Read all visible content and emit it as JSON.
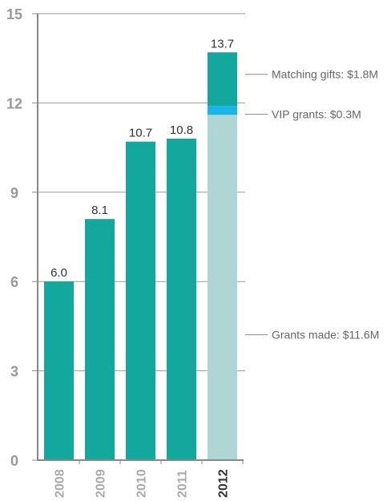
{
  "chart_data": {
    "type": "bar",
    "categories": [
      "2008",
      "2009",
      "2010",
      "2011",
      "2012"
    ],
    "highlight_category": "2012",
    "values": [
      6.0,
      8.1,
      10.7,
      10.8,
      13.7
    ],
    "data_labels": [
      "6.0",
      "8.1",
      "10.7",
      "10.8",
      "13.7"
    ],
    "ylim": [
      0,
      15
    ],
    "yticks": [
      0,
      3,
      6,
      9,
      12,
      15
    ],
    "ytick_labels": [
      "0",
      "3",
      "6",
      "9",
      "12",
      "15"
    ],
    "grid": true,
    "stack_2012": [
      {
        "name": "Grants made",
        "value": 11.6,
        "label": "Grants made: $11.6M",
        "color": "#b0d5d5"
      },
      {
        "name": "VIP grants",
        "value": 0.3,
        "label": "VIP grants: $0.3M",
        "color": "#19b5e8"
      },
      {
        "name": "Matching gifts",
        "value": 1.8,
        "label": "Matching gifts: $1.8M",
        "color": "#13a89e"
      }
    ],
    "colors": {
      "bar": "#13a89e",
      "axis": "#888888",
      "grid": "#999999"
    }
  }
}
